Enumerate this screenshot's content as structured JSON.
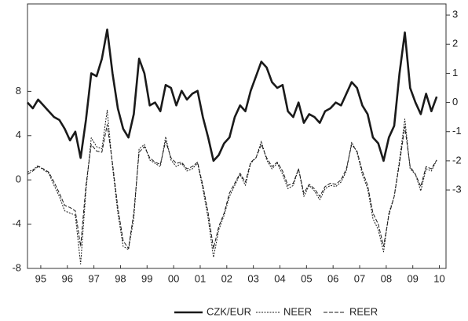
{
  "chart_data": {
    "type": "line",
    "x": [
      1995.0,
      1995.2,
      1995.4,
      1995.6,
      1995.8,
      1996.0,
      1996.2,
      1996.4,
      1996.6,
      1996.8,
      1997.0,
      1997.2,
      1997.4,
      1997.6,
      1997.8,
      1998.0,
      1998.2,
      1998.4,
      1998.6,
      1998.8,
      1999.0,
      1999.2,
      1999.4,
      1999.6,
      1999.8,
      2000.0,
      2000.2,
      2000.4,
      2000.6,
      2000.8,
      2001.0,
      2001.2,
      2001.4,
      2001.6,
      2001.8,
      2002.0,
      2002.2,
      2002.4,
      2002.6,
      2002.8,
      2003.0,
      2003.2,
      2003.4,
      2003.6,
      2003.8,
      2004.0,
      2004.2,
      2004.4,
      2004.6,
      2004.8,
      2005.0,
      2005.2,
      2005.4,
      2005.6,
      2005.8,
      2006.0,
      2006.2,
      2006.4,
      2006.6,
      2006.8,
      2007.0,
      2007.2,
      2007.4,
      2007.6,
      2007.8,
      2008.0,
      2008.2,
      2008.4,
      2008.6,
      2008.8,
      2009.0,
      2009.2,
      2009.4,
      2009.6,
      2009.8,
      2010.0,
      2010.2,
      2010.4
    ],
    "xlim": [
      1995,
      2010.75
    ],
    "xticks": [
      {
        "value": 1995.5,
        "label": "95"
      },
      {
        "value": 1996.5,
        "label": "96"
      },
      {
        "value": 1997.5,
        "label": "97"
      },
      {
        "value": 1998.5,
        "label": "98"
      },
      {
        "value": 1999.5,
        "label": "99"
      },
      {
        "value": 2000.5,
        "label": "00"
      },
      {
        "value": 2001.5,
        "label": "01"
      },
      {
        "value": 2002.5,
        "label": "02"
      },
      {
        "value": 2003.5,
        "label": "03"
      },
      {
        "value": 2004.5,
        "label": "04"
      },
      {
        "value": 2005.5,
        "label": "05"
      },
      {
        "value": 2006.5,
        "label": "06"
      },
      {
        "value": 2007.5,
        "label": "07"
      },
      {
        "value": 2008.5,
        "label": "08"
      },
      {
        "value": 2009.5,
        "label": "09"
      },
      {
        "value": 2010.5,
        "label": "10"
      }
    ],
    "ylim": [
      -8,
      15.9
    ],
    "yticks": [
      -8,
      -4,
      0,
      4,
      8
    ],
    "y2lim": [
      -5.69,
      3.38
    ],
    "y2ticks": [
      -3,
      -2,
      -1,
      0,
      1,
      2,
      3
    ],
    "series": [
      {
        "name": "CZK/EUR",
        "axis": "y2",
        "color": "#1a1a1a",
        "line_style": "solid",
        "line_width": 2.6,
        "values": [
          0.0,
          -0.2,
          0.1,
          -0.1,
          -0.3,
          -0.5,
          -0.6,
          -0.9,
          -1.3,
          -1.0,
          -1.9,
          -0.6,
          1.0,
          0.9,
          1.5,
          2.5,
          1.0,
          -0.2,
          -0.9,
          -1.2,
          -0.4,
          1.5,
          1.0,
          -0.1,
          0.0,
          -0.3,
          0.6,
          0.5,
          -0.1,
          0.4,
          0.1,
          0.3,
          0.4,
          -0.5,
          -1.2,
          -2.0,
          -1.8,
          -1.4,
          -1.2,
          -0.5,
          -0.1,
          -0.3,
          0.4,
          0.9,
          1.4,
          1.2,
          0.7,
          0.5,
          0.6,
          -0.3,
          -0.5,
          0.0,
          -0.7,
          -0.4,
          -0.5,
          -0.7,
          -0.3,
          -0.2,
          0.0,
          -0.1,
          0.3,
          0.7,
          0.5,
          -0.1,
          -0.4,
          -1.2,
          -1.4,
          -2.0,
          -1.2,
          -0.8,
          1.0,
          2.4,
          0.5,
          0.0,
          -0.4,
          0.3,
          -0.3,
          0.2
        ]
      },
      {
        "name": "NEER",
        "color": "#1a1a1a",
        "line_style": "dotted",
        "line_width": 1,
        "values": [
          0.7,
          0.9,
          1.3,
          0.9,
          0.6,
          -0.5,
          -1.5,
          -2.8,
          -3.0,
          -3.2,
          -7.6,
          -1.0,
          3.8,
          3.0,
          2.8,
          6.3,
          1.2,
          -3.0,
          -6.0,
          -6.3,
          -3.5,
          2.8,
          3.2,
          1.8,
          1.5,
          1.2,
          3.9,
          1.8,
          1.2,
          1.5,
          0.8,
          1.0,
          1.5,
          -0.8,
          -3.5,
          -7.0,
          -4.5,
          -3.2,
          -1.5,
          -0.5,
          0.5,
          -0.5,
          1.5,
          2.0,
          3.5,
          1.8,
          1.0,
          1.5,
          0.5,
          -0.8,
          -0.5,
          1.0,
          -1.5,
          -0.5,
          -1.0,
          -1.8,
          -0.8,
          -0.5,
          -0.6,
          -0.2,
          0.8,
          3.4,
          2.5,
          0.5,
          -0.8,
          -3.5,
          -4.5,
          -6.5,
          -3.0,
          -1.5,
          1.8,
          5.5,
          1.0,
          0.5,
          -1.0,
          1.0,
          0.8,
          1.8
        ]
      },
      {
        "name": "REER",
        "color": "#1a1a1a",
        "line_style": "dashed",
        "line_width": 1,
        "values": [
          0.5,
          0.8,
          1.2,
          1.0,
          0.7,
          -0.2,
          -1.2,
          -2.3,
          -2.5,
          -2.8,
          -6.0,
          -0.5,
          3.2,
          2.6,
          2.5,
          5.0,
          1.5,
          -2.5,
          -5.5,
          -6.2,
          -3.0,
          2.5,
          3.0,
          2.0,
          1.6,
          1.4,
          3.5,
          2.0,
          1.5,
          1.6,
          1.0,
          1.2,
          1.6,
          -0.5,
          -3.0,
          -6.2,
          -4.2,
          -3.0,
          -1.2,
          -0.3,
          0.6,
          -0.2,
          1.6,
          2.0,
          3.2,
          2.0,
          1.2,
          1.6,
          0.8,
          -0.5,
          -0.3,
          1.0,
          -1.2,
          -0.4,
          -0.8,
          -1.5,
          -0.6,
          -0.3,
          -0.4,
          0.0,
          1.0,
          3.2,
          2.6,
          0.8,
          -0.5,
          -3.0,
          -4.0,
          -6.0,
          -3.2,
          -1.5,
          1.5,
          4.8,
          1.2,
          0.5,
          -0.6,
          1.2,
          1.0,
          1.8
        ]
      }
    ],
    "legend": "bottom"
  }
}
